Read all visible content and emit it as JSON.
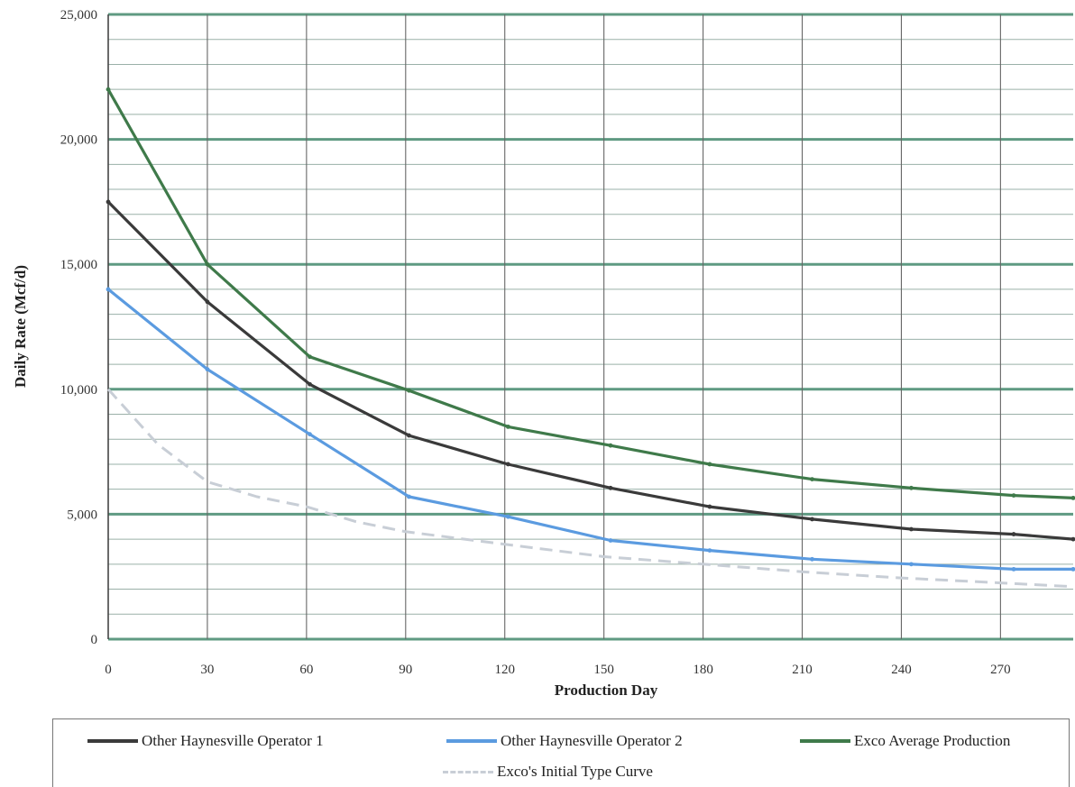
{
  "chart_data": {
    "type": "line",
    "title": "",
    "xlabel": "Production Day",
    "ylabel": "Daily Rate (Mcf/d)",
    "xlim": [
      0,
      292
    ],
    "ylim": [
      0,
      25000
    ],
    "x_ticks": [
      0,
      30,
      60,
      90,
      120,
      150,
      180,
      210,
      240,
      270
    ],
    "x_tick_labels": [
      "0",
      "30",
      "60",
      "90",
      "120",
      "150",
      "180",
      "210",
      "240",
      "270"
    ],
    "y_ticks": [
      0,
      5000,
      10000,
      15000,
      20000,
      25000
    ],
    "y_tick_labels": [
      "0",
      "5,000",
      "10,000",
      "15,000",
      "20,000",
      "25,000"
    ],
    "grid": true,
    "legend_position": "bottom",
    "series": [
      {
        "name": "Other Haynesville Operator 1",
        "color": "#3a3a3a",
        "style": "solid",
        "x": [
          0,
          30,
          61,
          91,
          121,
          152,
          182,
          213,
          243,
          274,
          292
        ],
        "y": [
          17500,
          13500,
          10200,
          8150,
          7000,
          6050,
          5300,
          4800,
          4400,
          4200,
          4000
        ]
      },
      {
        "name": "Other Haynesville Operator 2",
        "color": "#5b9be0",
        "style": "solid",
        "x": [
          0,
          30,
          61,
          91,
          121,
          152,
          182,
          213,
          243,
          274,
          292
        ],
        "y": [
          14000,
          10800,
          8200,
          5700,
          4900,
          3950,
          3550,
          3200,
          3000,
          2800,
          2800
        ]
      },
      {
        "name": "Exco Average Production",
        "color": "#3f7a4a",
        "style": "solid",
        "x": [
          0,
          30,
          61,
          91,
          121,
          152,
          182,
          213,
          243,
          274,
          292
        ],
        "y": [
          22000,
          15000,
          11300,
          9950,
          8500,
          7750,
          7000,
          6400,
          6050,
          5750,
          5650
        ]
      },
      {
        "name": "Exco's Initial Type Curve",
        "color": "#c8ced6",
        "style": "dashed",
        "x": [
          0,
          15,
          30,
          45,
          60,
          75,
          90,
          120,
          150,
          180,
          210,
          240,
          270,
          292
        ],
        "y": [
          10000,
          7800,
          6300,
          5700,
          5300,
          4700,
          4300,
          3800,
          3300,
          3000,
          2700,
          2450,
          2250,
          2100
        ]
      }
    ]
  }
}
